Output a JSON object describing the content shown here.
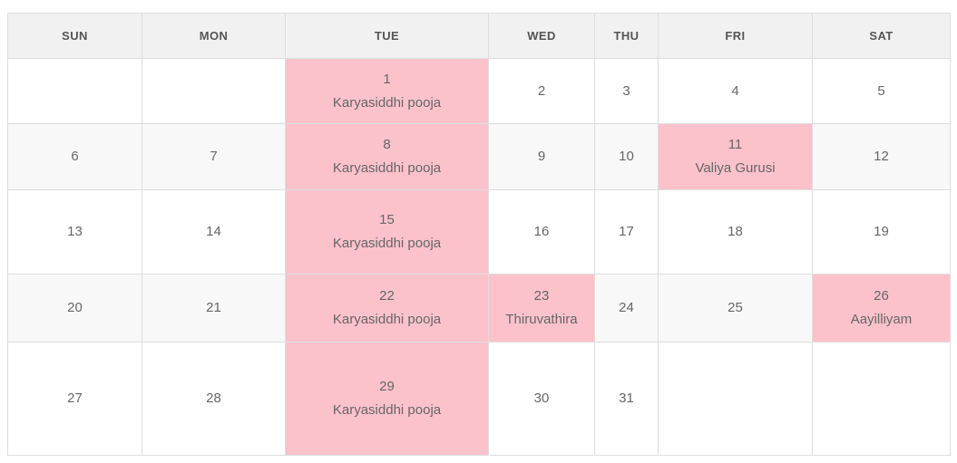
{
  "calendar": {
    "weekdays": [
      "SUN",
      "MON",
      "TUE",
      "WED",
      "THU",
      "FRI",
      "SAT"
    ],
    "weeks": [
      [
        {
          "day": "",
          "event": "",
          "highlight": false
        },
        {
          "day": "",
          "event": "",
          "highlight": false
        },
        {
          "day": "1",
          "event": "Karyasiddhi pooja",
          "highlight": true
        },
        {
          "day": "2",
          "event": "",
          "highlight": false
        },
        {
          "day": "3",
          "event": "",
          "highlight": false
        },
        {
          "day": "4",
          "event": "",
          "highlight": false
        },
        {
          "day": "5",
          "event": "",
          "highlight": false
        }
      ],
      [
        {
          "day": "6",
          "event": "",
          "highlight": false
        },
        {
          "day": "7",
          "event": "",
          "highlight": false
        },
        {
          "day": "8",
          "event": "Karyasiddhi pooja",
          "highlight": true
        },
        {
          "day": "9",
          "event": "",
          "highlight": false
        },
        {
          "day": "10",
          "event": "",
          "highlight": false
        },
        {
          "day": "11",
          "event": "Valiya Gurusi",
          "highlight": true
        },
        {
          "day": "12",
          "event": "",
          "highlight": false
        }
      ],
      [
        {
          "day": "13",
          "event": "",
          "highlight": false
        },
        {
          "day": "14",
          "event": "",
          "highlight": false
        },
        {
          "day": "15",
          "event": "Karyasiddhi pooja",
          "highlight": true
        },
        {
          "day": "16",
          "event": "",
          "highlight": false
        },
        {
          "day": "17",
          "event": "",
          "highlight": false
        },
        {
          "day": "18",
          "event": "",
          "highlight": false
        },
        {
          "day": "19",
          "event": "",
          "highlight": false
        }
      ],
      [
        {
          "day": "20",
          "event": "",
          "highlight": false
        },
        {
          "day": "21",
          "event": "",
          "highlight": false
        },
        {
          "day": "22",
          "event": "Karyasiddhi pooja",
          "highlight": true
        },
        {
          "day": "23",
          "event": "Thiruvathira",
          "highlight": true
        },
        {
          "day": "24",
          "event": "",
          "highlight": false
        },
        {
          "day": "25",
          "event": "",
          "highlight": false
        },
        {
          "day": "26",
          "event": "Aayilliyam",
          "highlight": true
        }
      ],
      [
        {
          "day": "27",
          "event": "",
          "highlight": false
        },
        {
          "day": "28",
          "event": "",
          "highlight": false
        },
        {
          "day": "29",
          "event": "Karyasiddhi pooja",
          "highlight": true
        },
        {
          "day": "30",
          "event": "",
          "highlight": false
        },
        {
          "day": "31",
          "event": "",
          "highlight": false
        },
        {
          "day": "",
          "event": "",
          "highlight": false
        },
        {
          "day": "",
          "event": "",
          "highlight": false
        }
      ]
    ],
    "colors": {
      "highlight": "#fbc2cc",
      "header_bg": "#f1f1f1",
      "stripe_bg": "#f8f8f8",
      "border": "#dedede",
      "header_text": "#555555",
      "text": "#666666",
      "page_bg": "#ffffff"
    }
  }
}
